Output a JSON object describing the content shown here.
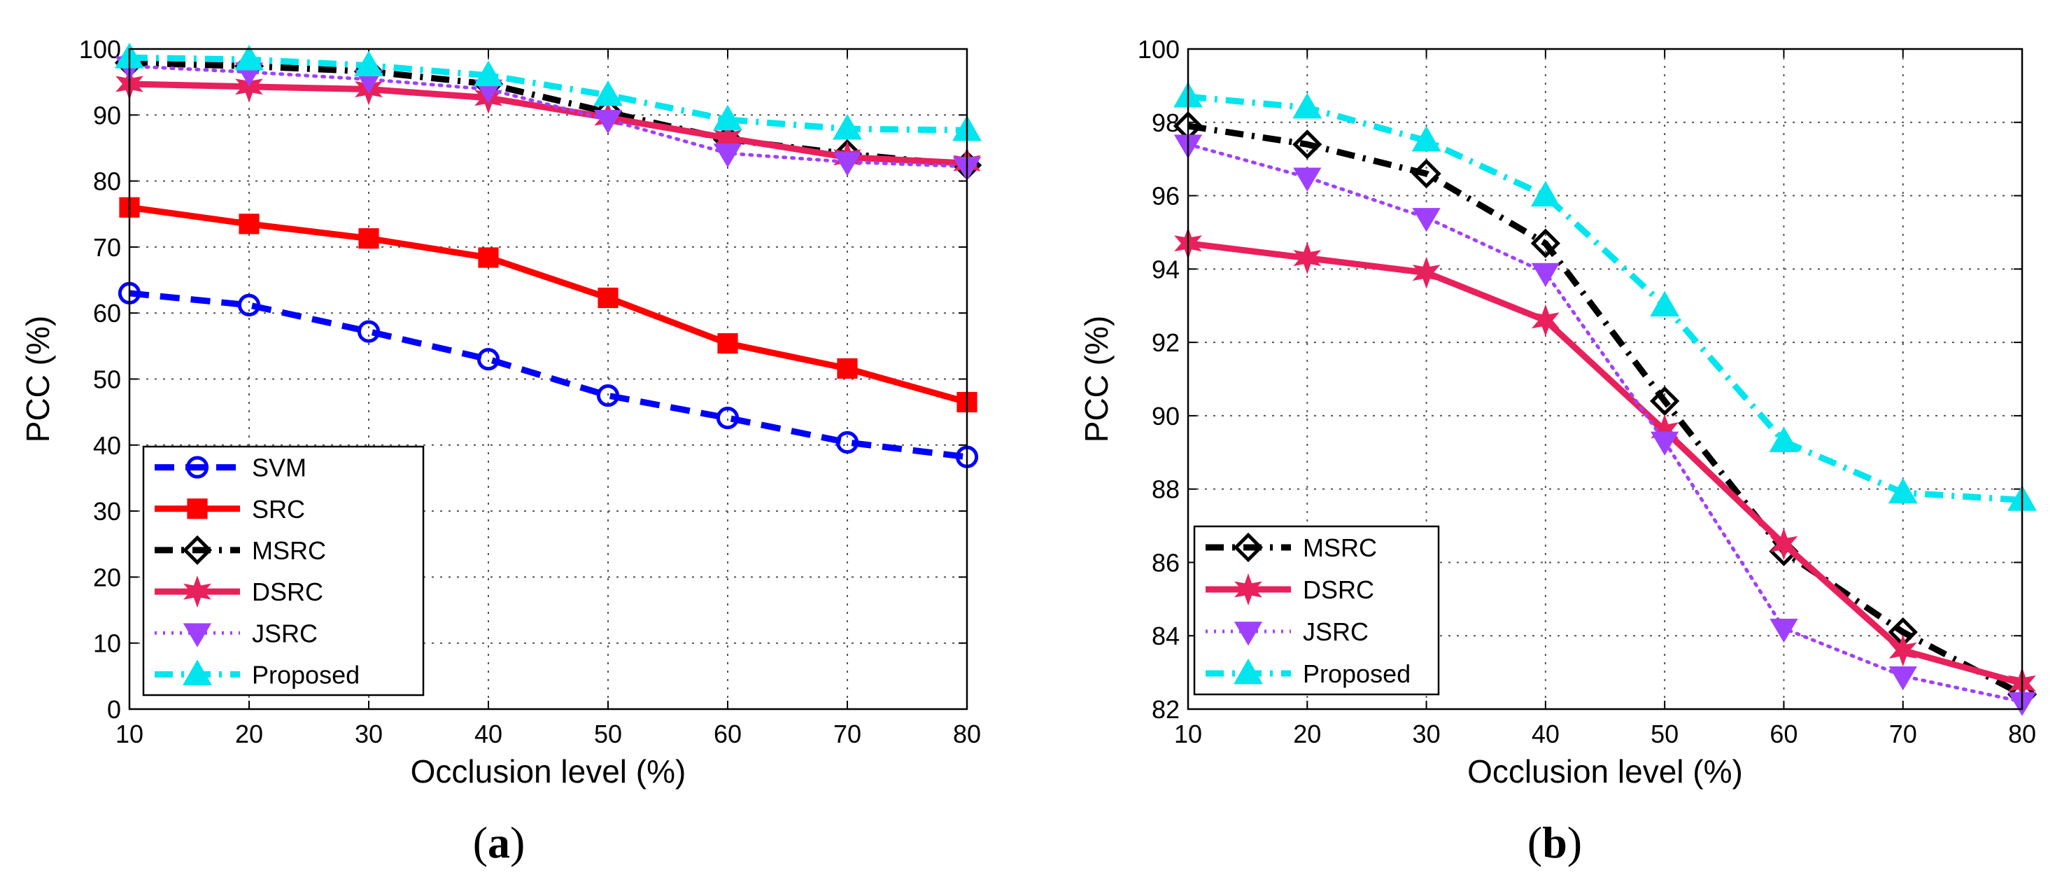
{
  "chart_data": [
    {
      "type": "line",
      "panel": "a",
      "caption": "a",
      "xlabel": "Occlusion level (%)",
      "ylabel": "PCC (%)",
      "xlim": [
        10,
        80
      ],
      "ylim": [
        0,
        100
      ],
      "xticks": [
        10,
        20,
        30,
        40,
        50,
        60,
        70,
        80
      ],
      "yticks": [
        0,
        10,
        20,
        30,
        40,
        50,
        60,
        70,
        80,
        90,
        100
      ],
      "grid": true,
      "legend_position": "bottom-left",
      "x": [
        10,
        20,
        30,
        40,
        50,
        60,
        70,
        80
      ],
      "series": [
        {
          "name": "SVM",
          "color": "#0000ff",
          "marker": "circle-open",
          "style": "dashed",
          "values": [
            63.0,
            61.2,
            57.2,
            53.0,
            47.5,
            44.1,
            40.4,
            38.2
          ]
        },
        {
          "name": "SRC",
          "color": "#ff0000",
          "marker": "square",
          "style": "solid",
          "values": [
            76.0,
            73.5,
            71.3,
            68.4,
            62.3,
            55.4,
            51.6,
            46.5
          ]
        },
        {
          "name": "MSRC",
          "color": "#000000",
          "marker": "diamond-open",
          "style": "dashdot",
          "values": [
            97.9,
            97.4,
            96.6,
            94.7,
            90.4,
            86.3,
            84.1,
            82.4
          ]
        },
        {
          "name": "DSRC",
          "color": "#e8205c",
          "marker": "star",
          "style": "solid",
          "values": [
            94.7,
            94.3,
            93.9,
            92.6,
            89.6,
            86.5,
            83.6,
            82.7
          ]
        },
        {
          "name": "JSRC",
          "color": "#a040ff",
          "marker": "triangle-down",
          "style": "dotted",
          "values": [
            97.4,
            96.5,
            95.4,
            93.9,
            89.3,
            84.2,
            82.9,
            82.2
          ]
        },
        {
          "name": "Proposed",
          "color": "#00e5ee",
          "marker": "triangle-up",
          "style": "dashdot",
          "values": [
            98.7,
            98.4,
            97.5,
            96.0,
            93.0,
            89.3,
            87.9,
            87.7
          ]
        }
      ]
    },
    {
      "type": "line",
      "panel": "b",
      "caption": "b",
      "xlabel": "Occlusion level (%)",
      "ylabel": "PCC (%)",
      "xlim": [
        10,
        80
      ],
      "ylim": [
        82,
        100
      ],
      "xticks": [
        10,
        20,
        30,
        40,
        50,
        60,
        70,
        80
      ],
      "yticks": [
        82,
        84,
        86,
        88,
        90,
        92,
        94,
        96,
        98,
        100
      ],
      "grid": true,
      "legend_position": "bottom-left",
      "x": [
        10,
        20,
        30,
        40,
        50,
        60,
        70,
        80
      ],
      "series": [
        {
          "name": "MSRC",
          "color": "#000000",
          "marker": "diamond-open",
          "style": "dashdot",
          "values": [
            97.9,
            97.4,
            96.6,
            94.7,
            90.4,
            86.3,
            84.1,
            82.4
          ]
        },
        {
          "name": "DSRC",
          "color": "#e8205c",
          "marker": "star",
          "style": "solid",
          "values": [
            94.7,
            94.3,
            93.9,
            92.6,
            89.6,
            86.5,
            83.6,
            82.7
          ]
        },
        {
          "name": "JSRC",
          "color": "#a040ff",
          "marker": "triangle-down",
          "style": "dotted",
          "values": [
            97.4,
            96.5,
            95.4,
            93.9,
            89.3,
            84.2,
            82.9,
            82.2
          ]
        },
        {
          "name": "Proposed",
          "color": "#00e5ee",
          "marker": "triangle-up",
          "style": "dashdot",
          "values": [
            98.7,
            98.4,
            97.5,
            96.0,
            93.0,
            89.3,
            87.9,
            87.7
          ]
        }
      ]
    }
  ]
}
